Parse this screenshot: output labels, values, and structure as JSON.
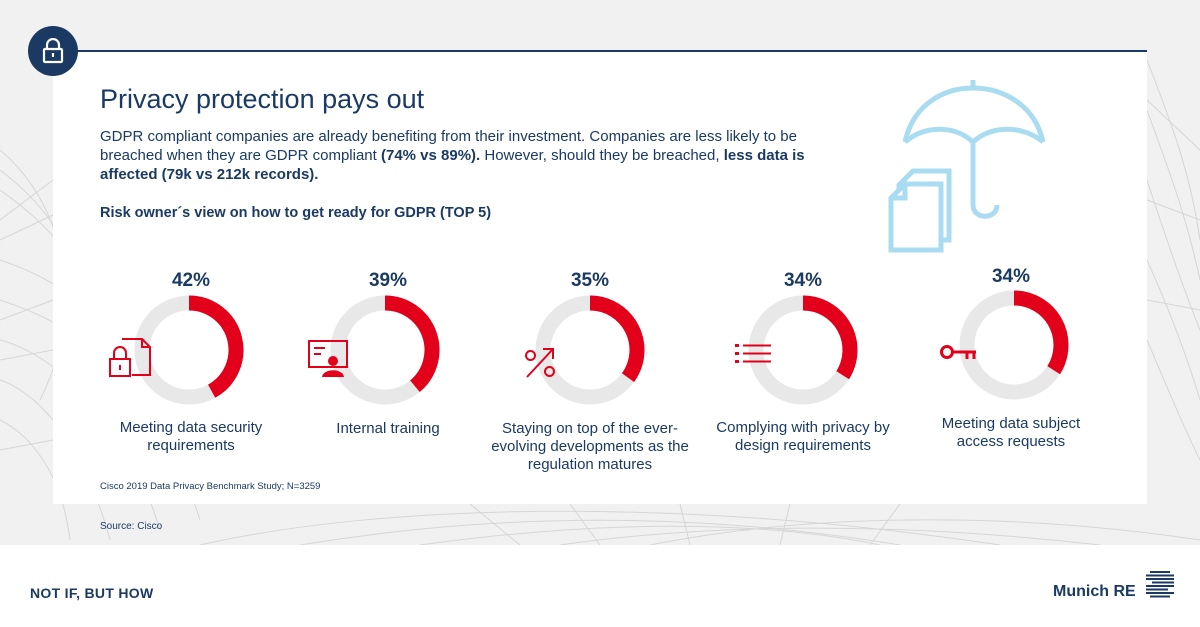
{
  "header": {
    "title": "Privacy protection pays out",
    "intro_part1": "GDPR compliant companies are already benefiting from their investment. Companies are less likely to be breached when they are GDPR compliant ",
    "intro_bold1": "(74% vs 89%).",
    "intro_part2": " However, should they be breached, ",
    "intro_bold2": "less data is affected (79k vs 212k records).",
    "subtitle": "Risk owner´s view on how to get ready for GDPR (TOP 5)"
  },
  "chart_data": {
    "type": "donut",
    "title": "Risk owner´s view on how to get ready for GDPR (TOP 5)",
    "unit": "%",
    "items": [
      {
        "label": "Meeting data security requirements",
        "value": 42,
        "value_label": "42%",
        "icon": "document-lock-icon"
      },
      {
        "label": "Internal training",
        "value": 39,
        "value_label": "39%",
        "icon": "presentation-icon"
      },
      {
        "label": "Staying on top of the ever-evolving developments as the regulation matures",
        "value": 35,
        "value_label": "35%",
        "icon": "percent-icon"
      },
      {
        "label": "Complying with privacy by design requirements",
        "value": 34,
        "value_label": "34%",
        "icon": "list-icon"
      },
      {
        "label": "Meeting data subject access requests",
        "value": 34,
        "value_label": "34%",
        "icon": "key-icon"
      }
    ],
    "colors": {
      "value": "#e2001a",
      "remainder": "#e8e8e8"
    }
  },
  "footnote": "Cisco 2019 Data Privacy Benchmark Study; N=3259",
  "source": "Source: Cisco",
  "footer": {
    "tagline": "NOT IF, BUT HOW",
    "brand": "Munich RE"
  },
  "colors": {
    "navy": "#1b3a63",
    "red": "#e2001a",
    "light_blue": "#a9dcf0"
  }
}
